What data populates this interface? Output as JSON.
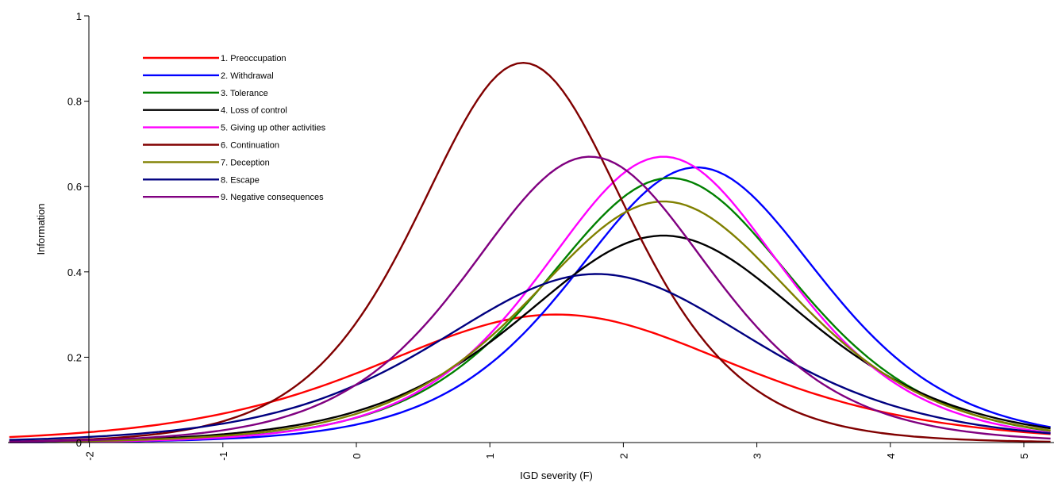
{
  "chart_data": {
    "type": "line",
    "title": "",
    "xlabel": "IGD severity (F)",
    "ylabel": "Information",
    "xlim": [
      -2.6,
      5.2
    ],
    "ylim": [
      0,
      1
    ],
    "xticks": [
      -2,
      -1,
      0,
      1,
      2,
      3,
      4,
      5
    ],
    "xtick_labels": [
      "-2",
      "-1",
      "0",
      "1",
      "2",
      "3",
      "4",
      "5"
    ],
    "yticks": [
      0,
      0.2,
      0.4,
      0.6,
      0.8,
      1
    ],
    "ytick_labels": [
      "0",
      "0.2",
      "0.4",
      "0.6",
      "0.8",
      "1"
    ],
    "grid": false,
    "legend_position": "top-left",
    "series": [
      {
        "name": "1. Preoccupation",
        "color": "#ff0000",
        "peak_x": 1.5,
        "peak_y": 0.3,
        "a": 1.1
      },
      {
        "name": "2. Withdrawal",
        "color": "#0000ff",
        "peak_x": 2.55,
        "peak_y": 0.645,
        "a": 1.6
      },
      {
        "name": "3. Tolerance",
        "color": "#008000",
        "peak_x": 2.35,
        "peak_y": 0.62,
        "a": 1.575
      },
      {
        "name": "4. Loss of control",
        "color": "#000000",
        "peak_x": 2.3,
        "peak_y": 0.485,
        "a": 1.39
      },
      {
        "name": "5. Giving up other activities",
        "color": "#ff00ff",
        "peak_x": 2.3,
        "peak_y": 0.67,
        "a": 1.64
      },
      {
        "name": "6. Continuation",
        "color": "#800000",
        "peak_x": 1.25,
        "peak_y": 0.89,
        "a": 1.885
      },
      {
        "name": "7. Deception",
        "color": "#808000",
        "peak_x": 2.3,
        "peak_y": 0.565,
        "a": 1.5
      },
      {
        "name": "8. Escape",
        "color": "#000080",
        "peak_x": 1.8,
        "peak_y": 0.395,
        "a": 1.255
      },
      {
        "name": "9. Negative consequences",
        "color": "#800080",
        "peak_x": 1.75,
        "peak_y": 0.67,
        "a": 1.64
      }
    ]
  }
}
